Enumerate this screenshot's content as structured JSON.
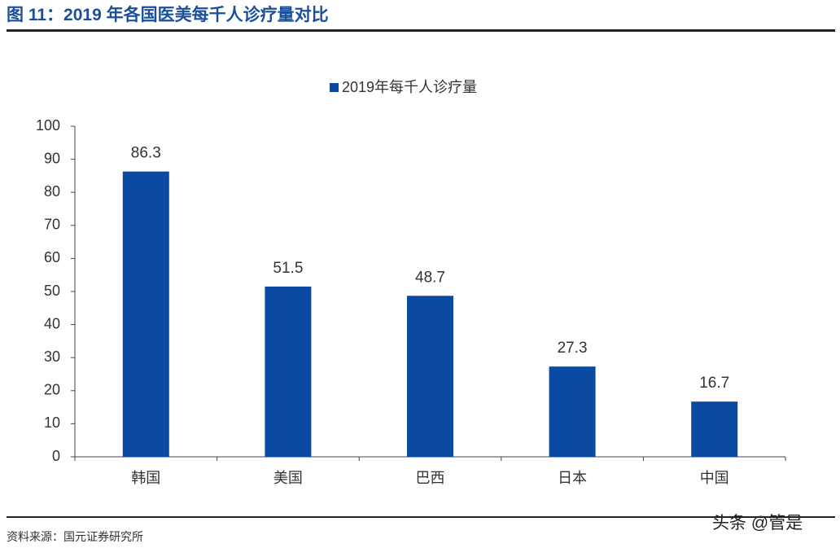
{
  "header": {
    "title": "图 11：2019 年各国医美每千人诊疗量对比"
  },
  "chart_data": {
    "type": "bar",
    "categories": [
      "韩国",
      "美国",
      "巴西",
      "日本",
      "中国"
    ],
    "series": [
      {
        "name": "2019年每千人诊疗量",
        "color": "#0b4aa2",
        "values": [
          86.3,
          51.5,
          48.7,
          27.3,
          16.7
        ]
      }
    ],
    "ylim": [
      0,
      100
    ],
    "yticks": [
      0,
      10,
      20,
      30,
      40,
      50,
      60,
      70,
      80,
      90,
      100
    ],
    "grid": false
  },
  "footer": {
    "source": "资料来源：国元证券研究所",
    "watermark": "头条 @管是"
  }
}
